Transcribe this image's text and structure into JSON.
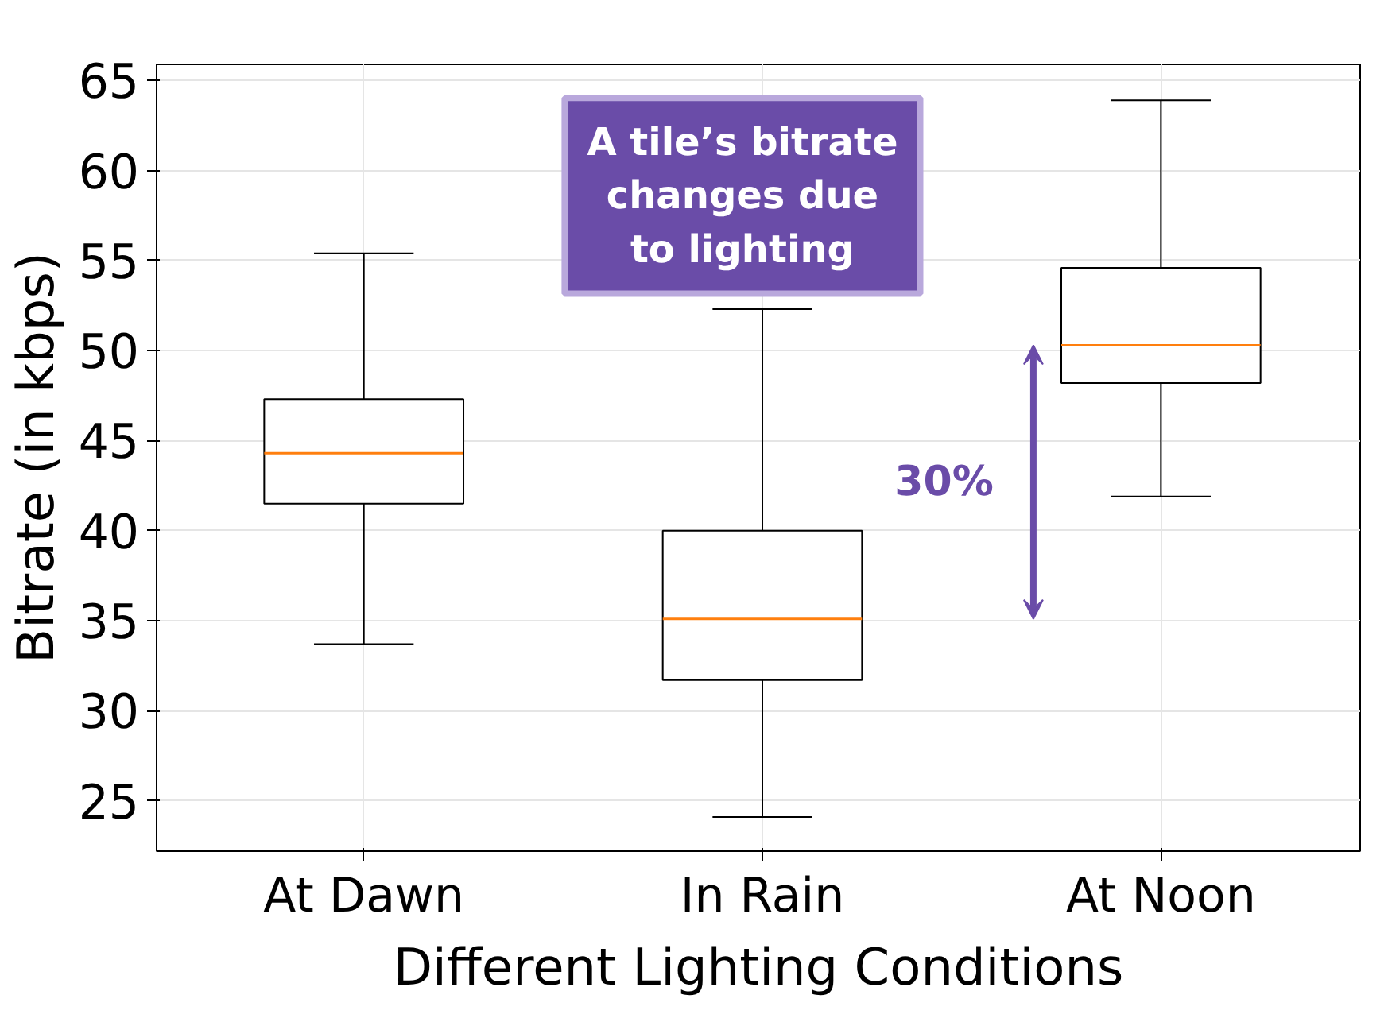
{
  "chart_data": {
    "type": "box",
    "xlabel": "Different Lighting Conditions",
    "ylabel": "Bitrate (in kbps)",
    "categories": [
      "At Dawn",
      "In Rain",
      "At Noon"
    ],
    "boxes": [
      {
        "low": 33.7,
        "q1": 41.5,
        "median": 44.3,
        "q3": 47.3,
        "high": 55.4
      },
      {
        "low": 24.1,
        "q1": 31.7,
        "median": 35.1,
        "q3": 40.0,
        "high": 52.3
      },
      {
        "low": 41.9,
        "q1": 48.2,
        "median": 50.3,
        "q3": 54.6,
        "high": 63.9
      }
    ],
    "ylim": [
      22.2,
      65.9
    ],
    "yticks": [
      25,
      30,
      35,
      40,
      45,
      50,
      55,
      60,
      65
    ],
    "grid": true,
    "annotations": [
      "A tile’s bitrate\nchanges due\nto lighting",
      "30%"
    ]
  }
}
